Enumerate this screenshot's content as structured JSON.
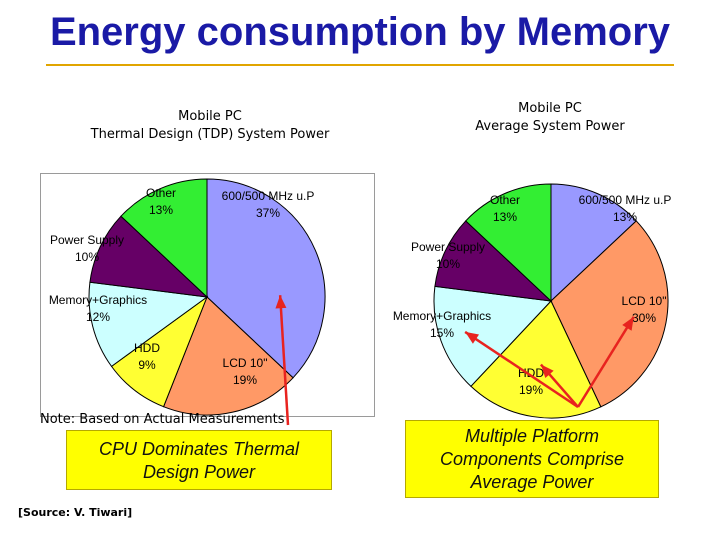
{
  "page": {
    "title": "Energy consumption by Memory",
    "note": "Note: Based on Actual Measurements",
    "source": "[Source: V. Tiwari]",
    "callout_left": [
      "CPU Dominates Thermal",
      "Design Power"
    ],
    "callout_right": [
      "Multiple Platform",
      "Components Comprise",
      "Average Power"
    ]
  },
  "colors": {
    "title": "#1a1aa6",
    "callout_fill": "#ffff00",
    "arrow": "#e8231f",
    "rule": "#e1a500"
  },
  "chart_data": [
    {
      "type": "pie",
      "title": [
        "Mobile PC",
        "Thermal Design (TDP) System Power"
      ],
      "categories": [
        "600/500 MHz  u.P",
        "LCD 10\"",
        "HDD",
        "Memory+Graphics",
        "Power Supply",
        "Other"
      ],
      "values": [
        37,
        19,
        9,
        12,
        10,
        13
      ],
      "labels": [
        "600/500 MHz  u.P\n37%",
        "LCD 10\"\n19%",
        "HDD\n9%",
        "Memory+Graphics\n12%",
        "Power Supply\n10%",
        "Other\n13%"
      ],
      "colors": [
        "#9999ff",
        "#ff9966",
        "#ffff33",
        "#ccffff",
        "#660066",
        "#33ee33"
      ]
    },
    {
      "type": "pie",
      "title": [
        "Mobile PC",
        "Average System Power"
      ],
      "categories": [
        "600/500 MHz u.P",
        "LCD 10\"",
        "HDD",
        "Memory+Graphics",
        "Power Supply",
        "Other"
      ],
      "values": [
        13,
        30,
        19,
        15,
        10,
        13
      ],
      "labels": [
        "600/500 MHz u.P\n13%",
        "LCD 10\"\n30%",
        "HDD\n19%",
        "Memory+Graphics\n15%",
        "Power Supply\n10%",
        "Other\n13%"
      ],
      "colors": [
        "#9999ff",
        "#ff9966",
        "#ffff33",
        "#ccffff",
        "#660066",
        "#33ee33"
      ]
    }
  ]
}
